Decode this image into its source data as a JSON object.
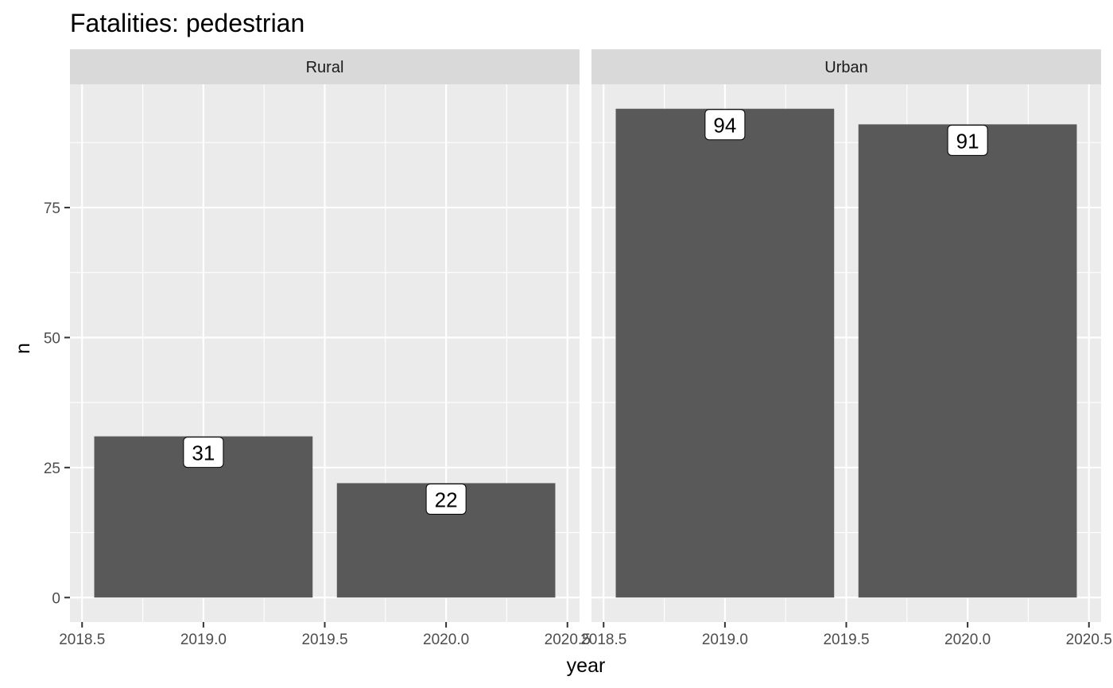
{
  "chart_data": {
    "type": "bar",
    "title": "Fatalities: pedestrian",
    "xlabel": "year",
    "ylabel": "n",
    "x_ticks": [
      "2018.5",
      "2019.0",
      "2019.5",
      "2020.0",
      "2020.5"
    ],
    "y_ticks": [
      "0",
      "25",
      "50",
      "75"
    ],
    "xlim": [
      2018.45,
      2020.55
    ],
    "ylim": [
      -4.7,
      98.7
    ],
    "grid": true,
    "legend": "none",
    "colors": {
      "bar": "#595959",
      "panel_background": "#ebebeb",
      "strip_background": "#d9d9d9",
      "grid": "#ffffff"
    },
    "facets": [
      {
        "label": "Rural",
        "series": [
          {
            "x": 2019,
            "value": 31,
            "label": "31"
          },
          {
            "x": 2020,
            "value": 22,
            "label": "22"
          }
        ]
      },
      {
        "label": "Urban",
        "series": [
          {
            "x": 2019,
            "value": 94,
            "label": "94"
          },
          {
            "x": 2020,
            "value": 91,
            "label": "91"
          }
        ]
      }
    ]
  }
}
